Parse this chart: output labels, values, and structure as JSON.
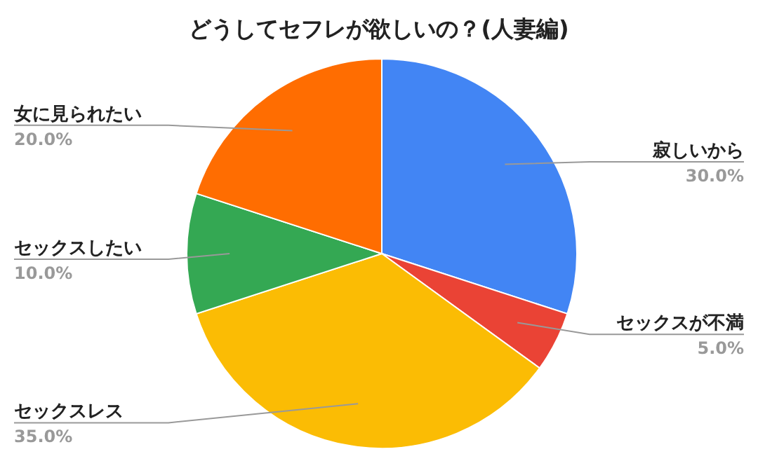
{
  "chart_data": {
    "type": "pie",
    "title": "どうしてセフレが欲しいの？(人妻編)",
    "categories": [
      "寂しいから",
      "セックスが不満",
      "セックスレス",
      "セックスしたい",
      "女に見られたい"
    ],
    "values": [
      30,
      5,
      35,
      10,
      20
    ],
    "value_labels": [
      "30.0%",
      "5.0%",
      "35.0%",
      "10.0%",
      "20.0%"
    ],
    "colors": [
      "#4285f4",
      "#ea4335",
      "#fbbc04",
      "#34a853",
      "#ff6d01"
    ]
  }
}
